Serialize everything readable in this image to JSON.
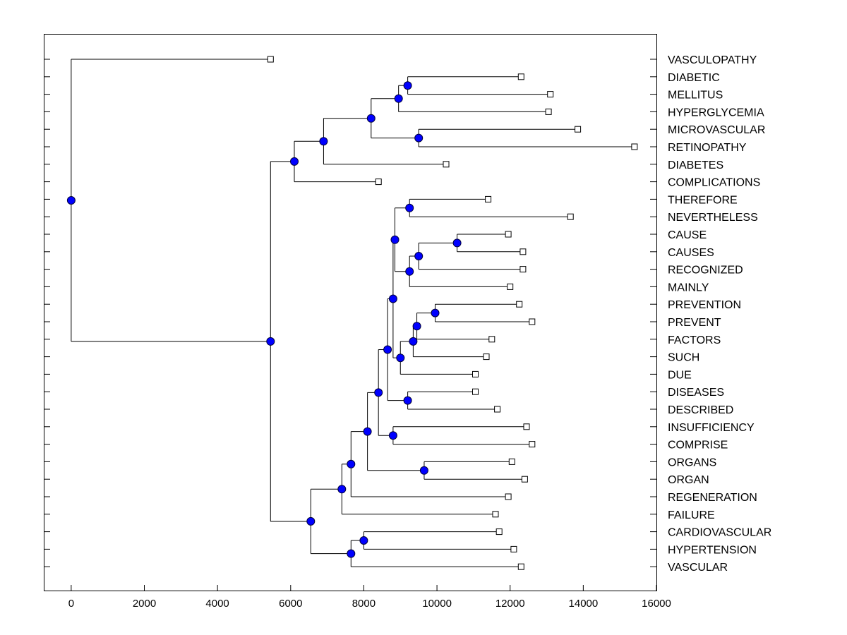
{
  "chart_data": {
    "type": "dendrogram",
    "orientation": "horizontal",
    "title": "",
    "xlabel": "",
    "ylabel": "",
    "xlim": [
      -750,
      16000
    ],
    "x_ticks": [
      0,
      2000,
      4000,
      6000,
      8000,
      10000,
      12000,
      14000,
      16000
    ],
    "x_tick_labels": [
      "0",
      "2000",
      "4000",
      "6000",
      "8000",
      "10000",
      "12000",
      "14000",
      "16000"
    ],
    "node_color": "#0000ff",
    "tree": {
      "x": 0,
      "children": [
        {
          "label": "VASCULOPATHY",
          "x": 5450
        },
        {
          "x": 5450,
          "children": [
            {
              "x": 6100,
              "children": [
                {
                  "x": 6900,
                  "children": [
                    {
                      "x": 8200,
                      "children": [
                        {
                          "x": 8950,
                          "children": [
                            {
                              "x": 9200,
                              "children": [
                                {
                                  "label": "DIABETIC",
                                  "x": 12300
                                },
                                {
                                  "label": "MELLITUS",
                                  "x": 13100
                                }
                              ]
                            },
                            {
                              "label": "HYPERGLYCEMIA",
                              "x": 13050
                            }
                          ]
                        },
                        {
                          "x": 9500,
                          "children": [
                            {
                              "label": "MICROVASCULAR",
                              "x": 13850
                            },
                            {
                              "label": "RETINOPATHY",
                              "x": 15400
                            }
                          ]
                        }
                      ]
                    },
                    {
                      "label": "DIABETES",
                      "x": 10250
                    }
                  ]
                },
                {
                  "label": "COMPLICATIONS",
                  "x": 8400
                }
              ]
            },
            {
              "x": 6550,
              "children": [
                {
                  "x": 7400,
                  "children": [
                    {
                      "x": 7650,
                      "children": [
                        {
                          "x": 8100,
                          "children": [
                            {
                              "x": 8400,
                              "children": [
                                {
                                  "x": 8650,
                                  "children": [
                                    {
                                      "x": 8800,
                                      "children": [
                                        {
                                          "x": 8850,
                                          "children": [
                                            {
                                              "x": 9250,
                                              "children": [
                                                {
                                                  "label": "THEREFORE",
                                                  "x": 11400
                                                },
                                                {
                                                  "label": "NEVERTHELESS",
                                                  "x": 13650
                                                }
                                              ]
                                            },
                                            {
                                              "x": 9250,
                                              "children": [
                                                {
                                                  "x": 9500,
                                                  "children": [
                                                    {
                                                      "x": 10550,
                                                      "children": [
                                                        {
                                                          "label": "CAUSE",
                                                          "x": 11950
                                                        },
                                                        {
                                                          "label": "CAUSES",
                                                          "x": 12350
                                                        }
                                                      ]
                                                    },
                                                    {
                                                      "label": "RECOGNIZED",
                                                      "x": 12350
                                                    }
                                                  ]
                                                },
                                                {
                                                  "label": "MAINLY",
                                                  "x": 12000
                                                }
                                              ]
                                            }
                                          ]
                                        },
                                        {
                                          "x": 9000,
                                          "children": [
                                            {
                                              "x": 9350,
                                              "children": [
                                                {
                                                  "x": 9450,
                                                  "children": [
                                                    {
                                                      "x": 9950,
                                                      "children": [
                                                        {
                                                          "label": "PREVENTION",
                                                          "x": 12250
                                                        },
                                                        {
                                                          "label": "PREVENT",
                                                          "x": 12600
                                                        }
                                                      ]
                                                    },
                                                    {
                                                      "label": "FACTORS",
                                                      "x": 11500
                                                    }
                                                  ]
                                                },
                                                {
                                                  "label": "SUCH",
                                                  "x": 11350
                                                }
                                              ]
                                            },
                                            {
                                              "label": "DUE",
                                              "x": 11050
                                            }
                                          ]
                                        }
                                      ]
                                    },
                                    {
                                      "x": 9200,
                                      "children": [
                                        {
                                          "label": "DISEASES",
                                          "x": 11050
                                        },
                                        {
                                          "label": "DESCRIBED",
                                          "x": 11650
                                        }
                                      ]
                                    }
                                  ]
                                },
                                {
                                  "x": 8800,
                                  "children": [
                                    {
                                      "label": "INSUFFICIENCY",
                                      "x": 12450
                                    },
                                    {
                                      "label": "COMPRISE",
                                      "x": 12600
                                    }
                                  ]
                                }
                              ]
                            },
                            {
                              "x": 9650,
                              "children": [
                                {
                                  "label": "ORGANS",
                                  "x": 12050
                                },
                                {
                                  "label": "ORGAN",
                                  "x": 12400
                                }
                              ]
                            }
                          ]
                        },
                        {
                          "label": "REGENERATION",
                          "x": 11950
                        }
                      ]
                    },
                    {
                      "label": "FAILURE",
                      "x": 11600
                    }
                  ]
                },
                {
                  "x": 7650,
                  "children": [
                    {
                      "x": 8000,
                      "children": [
                        {
                          "label": "CARDIOVASCULAR",
                          "x": 11700
                        },
                        {
                          "label": "HYPERTENSION",
                          "x": 12100
                        }
                      ]
                    },
                    {
                      "label": "VASCULAR",
                      "x": 12300
                    }
                  ]
                }
              ]
            }
          ]
        }
      ]
    }
  }
}
